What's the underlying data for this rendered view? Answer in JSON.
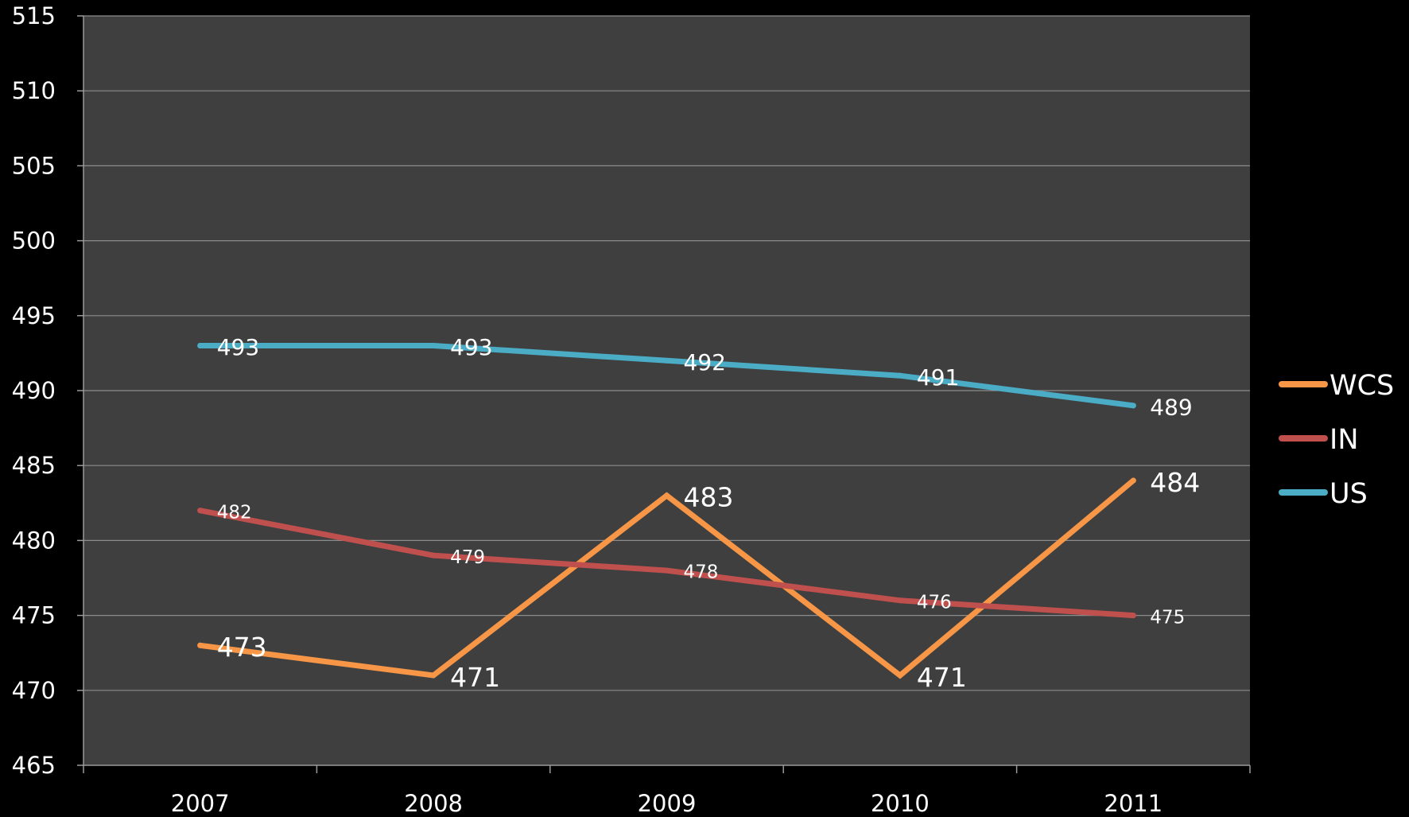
{
  "chart_data": {
    "type": "line",
    "title": "",
    "xlabel": "",
    "ylabel": "",
    "categories": [
      "2007",
      "2008",
      "2009",
      "2010",
      "2011"
    ],
    "ylim": [
      465,
      515
    ],
    "ytick_step": 5,
    "grid": true,
    "legend_position": "right",
    "background_color": "#000000",
    "plot_color": "#3f3f3f",
    "grid_color": "#8c8c8c",
    "series": [
      {
        "name": "WCS",
        "color": "#f79646",
        "values": [
          473,
          471,
          483,
          471,
          484
        ],
        "data_labels": [
          "473",
          "471",
          "483",
          "471",
          "484"
        ],
        "label_size": "large"
      },
      {
        "name": "IN",
        "color": "#c0504d",
        "values": [
          482,
          479,
          478,
          476,
          475
        ],
        "data_labels": [
          "482",
          "479",
          "478",
          "476",
          "475"
        ],
        "label_size": "small"
      },
      {
        "name": "US",
        "color": "#4bacc6",
        "values": [
          493,
          493,
          492,
          491,
          489
        ],
        "data_labels": [
          "493",
          "493",
          "492",
          "491",
          "489"
        ],
        "label_size": "medium"
      }
    ]
  }
}
